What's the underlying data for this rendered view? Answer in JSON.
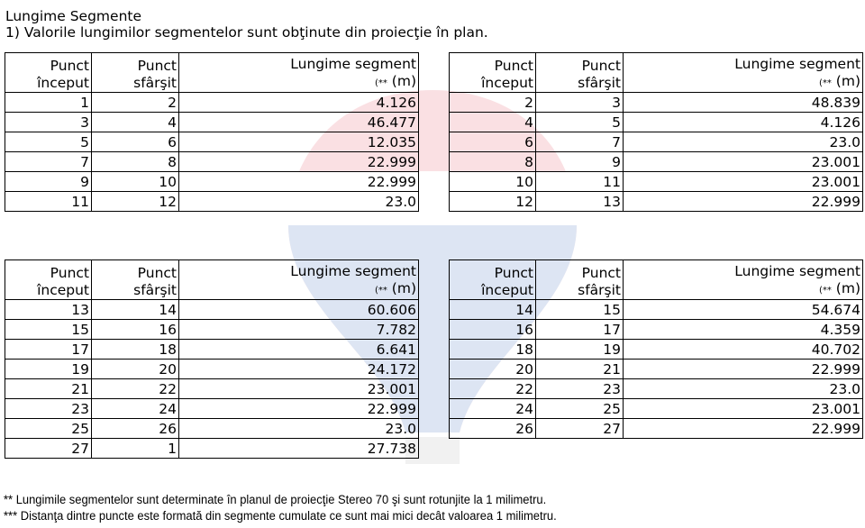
{
  "title": "Lungime Segmente",
  "subtitle": "1) Valorile lungimilor segmentelor sunt obţinute din proiecţie în plan.",
  "headers": {
    "start_a": "Punct",
    "start_b": "început",
    "end_a": "Punct",
    "end_b": "sfârşit",
    "len_a": "Lungime segment",
    "len_note": "(**",
    "len_unit": "(m)"
  },
  "tables": [
    {
      "rows": [
        [
          "1",
          "2",
          "4.126"
        ],
        [
          "3",
          "4",
          "46.477"
        ],
        [
          "5",
          "6",
          "12.035"
        ],
        [
          "7",
          "8",
          "22.999"
        ],
        [
          "9",
          "10",
          "22.999"
        ],
        [
          "11",
          "12",
          "23.0"
        ]
      ]
    },
    {
      "rows": [
        [
          "2",
          "3",
          "48.839"
        ],
        [
          "4",
          "5",
          "4.126"
        ],
        [
          "6",
          "7",
          "23.0"
        ],
        [
          "8",
          "9",
          "23.001"
        ],
        [
          "10",
          "11",
          "23.001"
        ],
        [
          "12",
          "13",
          "22.999"
        ]
      ]
    },
    {
      "rows": [
        [
          "13",
          "14",
          "60.606"
        ],
        [
          "15",
          "16",
          "7.782"
        ],
        [
          "17",
          "18",
          "6.641"
        ],
        [
          "19",
          "20",
          "24.172"
        ],
        [
          "21",
          "22",
          "23.001"
        ],
        [
          "23",
          "24",
          "22.999"
        ],
        [
          "25",
          "26",
          "23.0"
        ],
        [
          "27",
          "1",
          "27.738"
        ]
      ]
    },
    {
      "rows": [
        [
          "14",
          "15",
          "54.674"
        ],
        [
          "16",
          "17",
          "4.359"
        ],
        [
          "18",
          "19",
          "40.702"
        ],
        [
          "20",
          "21",
          "22.999"
        ],
        [
          "22",
          "23",
          "23.0"
        ],
        [
          "24",
          "25",
          "23.001"
        ],
        [
          "26",
          "27",
          "22.999"
        ]
      ]
    }
  ],
  "footnotes": [
    "** Lungimile segmentelor sunt determinate în planul de proiecţie Stereo 70 şi sunt rotunjite la 1 milimetru.",
    "*** Distanţa dintre puncte este formată din segmente cumulate ce sunt mai mici decât valoarea 1 milimetru."
  ],
  "watermark": {
    "text": "RE/MAX",
    "colors": [
      "#dc1c2e",
      "#003da5"
    ]
  }
}
